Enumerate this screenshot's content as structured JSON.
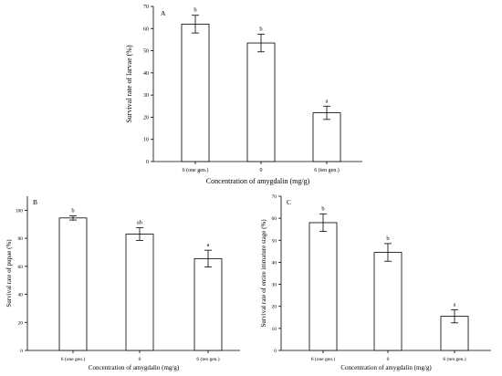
{
  "chart_data": [
    {
      "type": "bar",
      "panel_label": "A",
      "categories": [
        "6 (one gen.)",
        "0",
        "6 (ten gen.)"
      ],
      "values": [
        62,
        53.5,
        22
      ],
      "errors": [
        4,
        4,
        3
      ],
      "significance": [
        "b",
        "b",
        "a"
      ],
      "xlabel": "Concentration of amygdalin (mg/g)",
      "ylabel": "Survival rate of larvae (%)",
      "ylim": [
        0,
        70
      ],
      "yticks": [
        0,
        10,
        20,
        30,
        40,
        50,
        60,
        70
      ],
      "grid": false
    },
    {
      "type": "bar",
      "panel_label": "B",
      "categories": [
        "6 (one gen.)",
        "0",
        "6 (ten gen.)"
      ],
      "values": [
        94.5,
        83,
        65.5
      ],
      "errors": [
        1.5,
        4.5,
        6
      ],
      "significance": [
        "b",
        "ab",
        "a"
      ],
      "xlabel": "Concentration of amygdalin (mg/g)",
      "ylabel": "Survival rate of pupae (%)",
      "ylim": [
        0,
        110
      ],
      "yticks": [
        0,
        20,
        40,
        60,
        80,
        100
      ],
      "grid": false
    },
    {
      "type": "bar",
      "panel_label": "C",
      "categories": [
        "6 (one gen.)",
        "0",
        "6 (ten gen.)"
      ],
      "values": [
        58,
        44.5,
        15.5
      ],
      "errors": [
        4,
        4,
        3
      ],
      "significance": [
        "b",
        "b",
        "a"
      ],
      "xlabel": "Concentration of amygdalin (mg/g)",
      "ylabel": "Survival rate of entire immature stage (%)",
      "ylim": [
        0,
        70
      ],
      "yticks": [
        0,
        10,
        20,
        30,
        40,
        50,
        60,
        70
      ],
      "grid": false
    }
  ]
}
